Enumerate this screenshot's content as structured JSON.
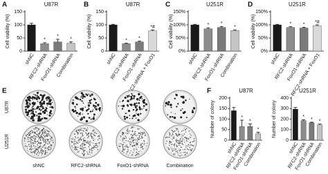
{
  "chart_data": [
    {
      "type": "bar",
      "panel": "A",
      "title": "U87R",
      "y_label": "Cell viability (%)",
      "categories": [
        "shNC",
        "RFC2-shRNA",
        "FoxO1-shRNA",
        "Combination"
      ],
      "values": [
        100,
        28,
        35,
        30
      ],
      "errors": [
        6,
        4,
        10,
        5
      ],
      "significance": [
        null,
        "*",
        "*",
        "*"
      ],
      "colors": [
        "#1a1a1a",
        "#8c8c8c",
        "#7a7a7a",
        "#c4c4c4"
      ],
      "ylim": [
        0,
        150
      ],
      "yticks": [
        0,
        50,
        100,
        150
      ]
    },
    {
      "type": "bar",
      "panel": "B",
      "title": "U87R",
      "y_label": "Cell viability (%)",
      "categories": [
        "shNC",
        "RFC2-shRNA",
        "FoxO1-shRNA",
        "RFC2-shRNA + FoxO1"
      ],
      "values": [
        100,
        28,
        35,
        77
      ],
      "errors": [
        2,
        2,
        3,
        4
      ],
      "significance": [
        null,
        "*",
        "*",
        "*#"
      ],
      "colors": [
        "#1a1a1a",
        "#8c8c8c",
        "#7a7a7a",
        "#d9d9d9"
      ],
      "ylim": [
        0,
        150
      ],
      "yticks": [
        0,
        50,
        100,
        150
      ]
    },
    {
      "type": "bar",
      "panel": "C",
      "title": "U251R",
      "y_label": "Cell viability (%)",
      "categories": [
        "shNC",
        "RFC2-shRNA",
        "FoxO1-shRNA",
        "Combination"
      ],
      "values": [
        100,
        85,
        90,
        78
      ],
      "errors": [
        2,
        4,
        4,
        3
      ],
      "significance": [
        null,
        "*",
        "*",
        "*"
      ],
      "colors": [
        "#1a1a1a",
        "#8c8c8c",
        "#7a7a7a",
        "#c4c4c4"
      ],
      "ylim": [
        0,
        150
      ],
      "yticks": [
        {
          "value": 0,
          "label": "0%"
        },
        {
          "value": 50,
          "label": "50%"
        },
        {
          "value": 100,
          "label": "100%"
        },
        {
          "value": 150,
          "label": "150%"
        }
      ]
    },
    {
      "type": "bar",
      "panel": "D",
      "title": "U251R",
      "y_label": "Cell viability (%)",
      "categories": [
        "shNC",
        "RFC2-shRNA",
        "FoxO1-shRNA",
        "RFC2-shRNA + FoxO1"
      ],
      "values": [
        100,
        90,
        88,
        97
      ],
      "errors": [
        2,
        3,
        3,
        3
      ],
      "significance": [
        null,
        "*",
        "*",
        "*#"
      ],
      "colors": [
        "#1a1a1a",
        "#8c8c8c",
        "#7a7a7a",
        "#d9d9d9"
      ],
      "ylim": [
        0,
        150
      ],
      "yticks": [
        {
          "value": 0,
          "label": "0%"
        },
        {
          "value": 50,
          "label": "50%"
        },
        {
          "value": 100,
          "label": "100%"
        },
        {
          "value": 150,
          "label": "150%"
        }
      ]
    },
    {
      "type": "colony-images",
      "panel": "E",
      "rows": [
        "U87R",
        "U251R"
      ],
      "columns": [
        "shNC",
        "RFC2-shRNA",
        "FoxO1-shRNA",
        "Combination"
      ]
    },
    {
      "type": "bar",
      "panel": "F",
      "title": "U87R",
      "y_label": "Number of colony",
      "categories": [
        "shNC",
        "RFC2-shRNA",
        "FoxO1-shRNA",
        "Combination"
      ],
      "values": [
        140,
        65,
        65,
        30
      ],
      "errors": [
        15,
        30,
        12,
        8
      ],
      "significance": [
        null,
        "*",
        "*",
        "*"
      ],
      "colors": [
        "#1a1a1a",
        "#8c8c8c",
        "#7a7a7a",
        "#c4c4c4"
      ],
      "ylim": [
        0,
        200
      ],
      "yticks": [
        0,
        50,
        100,
        150,
        200
      ]
    },
    {
      "type": "bar",
      "title": "U251R",
      "y_label": "Number of colony",
      "categories": [
        "shNC",
        "RFC2-shRNA",
        "FoxO1-shRNA",
        "Combination"
      ],
      "values": [
        295,
        185,
        165,
        145
      ],
      "errors": [
        15,
        10,
        6,
        8
      ],
      "significance": [
        null,
        "*",
        "*",
        "*"
      ],
      "colors": [
        "#1a1a1a",
        "#8c8c8c",
        "#7a7a7a",
        "#c4c4c4"
      ],
      "ylim": [
        0,
        400
      ],
      "yticks": [
        0,
        100,
        200,
        300,
        400
      ]
    }
  ]
}
